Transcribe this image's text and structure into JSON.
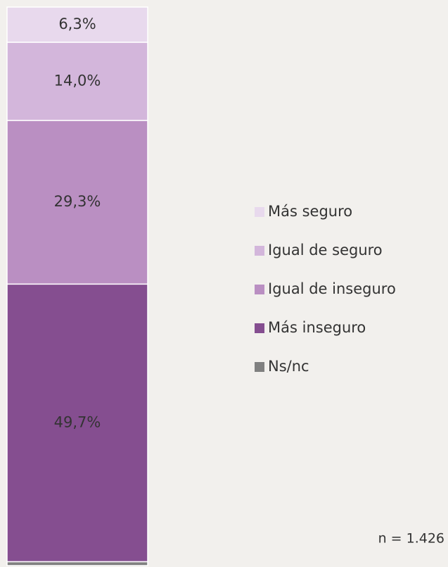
{
  "chart_data": {
    "type": "stacked_bar",
    "series": [
      {
        "name": "Más seguro",
        "color": "#e8d9ed",
        "values": [
          6.3
        ],
        "value_labels": [
          "6,3%"
        ]
      },
      {
        "name": "Igual de seguro",
        "color": "#d3b6db",
        "values": [
          14.0
        ],
        "value_labels": [
          "14,0%"
        ]
      },
      {
        "name": "Igual de inseguro",
        "color": "#ba8fc2",
        "values": [
          29.3
        ],
        "value_labels": [
          "29,3%"
        ]
      },
      {
        "name": "Más inseguro",
        "color": "#854e90",
        "values": [
          49.7
        ],
        "value_labels": [
          "49,7%"
        ]
      },
      {
        "name": "Ns/nc",
        "color": "#808080",
        "values": [
          0.7
        ]
      }
    ],
    "ylim": [
      0,
      100
    ],
    "annotation": "n = 1.426"
  }
}
